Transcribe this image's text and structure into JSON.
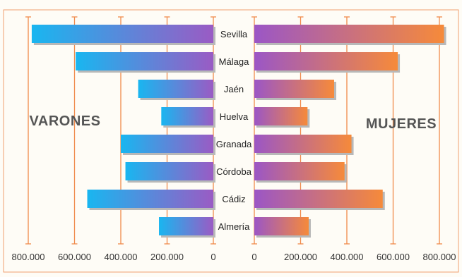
{
  "chart_data": {
    "type": "bar",
    "orientation": "horizontal",
    "layout": "population-pyramid",
    "title": "",
    "categories": [
      "Sevilla",
      "Málaga",
      "Jaén",
      "Huelva",
      "Granada",
      "Córdoba",
      "Cádiz",
      "Almería"
    ],
    "series": [
      {
        "name": "VARONES",
        "side": "left",
        "values": [
          785000,
          595000,
          325000,
          225000,
          400000,
          380000,
          545000,
          235000
        ],
        "color_start": "#9a5bc4",
        "color_end": "#19b6f0"
      },
      {
        "name": "MUJERES",
        "side": "right",
        "values": [
          820000,
          620000,
          345000,
          230000,
          420000,
          390000,
          555000,
          235000
        ],
        "color_start": "#9b56c6",
        "color_end": "#f68a3a"
      }
    ],
    "xlim_left": [
      0,
      800000
    ],
    "xlim_right": [
      0,
      800000
    ],
    "left_tick_labels": [
      "800.000",
      "600.000",
      "400.000",
      "200.000",
      "0"
    ],
    "right_tick_labels": [
      "0",
      "200.000",
      "400.000",
      "600.000",
      "800.000"
    ],
    "grid": true,
    "grid_color": "#f08a4b",
    "border_color": "#f0a070",
    "shadow_color": "#b8b8b8"
  }
}
